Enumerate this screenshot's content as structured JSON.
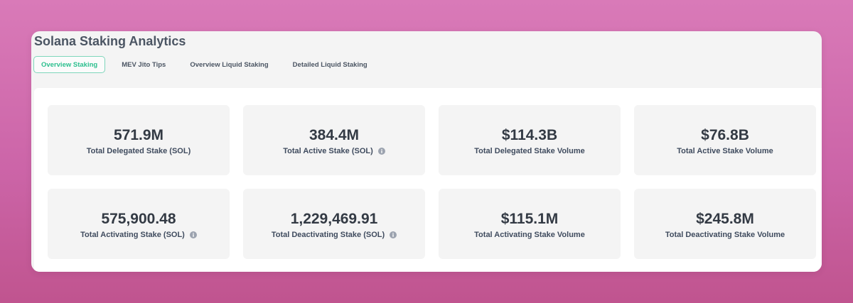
{
  "app": {
    "title": "Solana Staking Analytics"
  },
  "tabs": [
    {
      "label": "Overview Staking",
      "active": true
    },
    {
      "label": "MEV Jito Tips",
      "active": false
    },
    {
      "label": "Overview Liquid Staking",
      "active": false
    },
    {
      "label": "Detailed Liquid Staking",
      "active": false
    }
  ],
  "cards": [
    {
      "value": "571.9M",
      "label": "Total Delegated Stake (SOL)",
      "has_info": false
    },
    {
      "value": "384.4M",
      "label": "Total Active Stake (SOL)",
      "has_info": true
    },
    {
      "value": "$114.3B",
      "label": "Total Delegated Stake Volume",
      "has_info": false
    },
    {
      "value": "$76.8B",
      "label": "Total Active Stake Volume",
      "has_info": false
    },
    {
      "value": "575,900.48",
      "label": "Total Activating Stake (SOL)",
      "has_info": true
    },
    {
      "value": "1,229,469.91",
      "label": "Total Deactivating Stake (SOL)",
      "has_info": true
    },
    {
      "value": "$115.1M",
      "label": "Total Activating Stake Volume",
      "has_info": false
    },
    {
      "value": "$245.8M",
      "label": "Total Deactivating Stake Volume",
      "has_info": false
    }
  ],
  "colors": {
    "accent": "#2cbf8e",
    "accent_border": "#7fd6bb",
    "info_icon": "#9ca3af"
  },
  "icons": {
    "info": "info-icon"
  }
}
